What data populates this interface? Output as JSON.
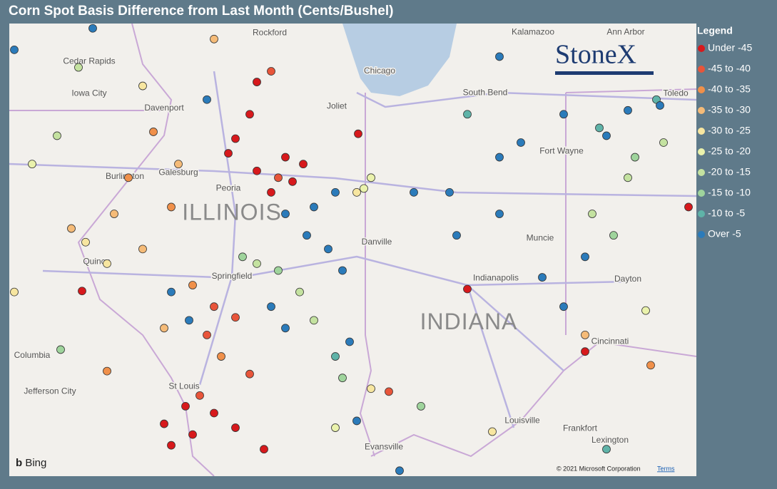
{
  "title": "Corn Spot Basis Difference from Last Month (Cents/Bushel)",
  "logo": "StoneX",
  "attribution": {
    "provider": "Bing",
    "copyright": "© 2021 Microsoft Corporation",
    "terms": "Terms"
  },
  "legend": {
    "title": "Legend",
    "items": [
      {
        "label": "Under -45",
        "color": "#d7191c"
      },
      {
        "label": "-45 to -40",
        "color": "#e8553a"
      },
      {
        "label": "-40 to -35",
        "color": "#f0904a"
      },
      {
        "label": "-35 to -30",
        "color": "#f5bb78"
      },
      {
        "label": "-30 to -25",
        "color": "#f7e6a0"
      },
      {
        "label": "-25 to -20",
        "color": "#eaf2ac"
      },
      {
        "label": "-20 to -15",
        "color": "#c4e2a0"
      },
      {
        "label": "-15 to -10",
        "color": "#9fd49c"
      },
      {
        "label": "-10 to -5",
        "color": "#5fb3a8"
      },
      {
        "label": "Over -5",
        "color": "#2b7bba"
      }
    ]
  },
  "map": {
    "states": [
      {
        "name": "ILLINOIS",
        "lon": -89.68,
        "lat": 40.42
      },
      {
        "name": "INDIANA",
        "lon": -86.36,
        "lat": 39.3
      }
    ],
    "cities": [
      {
        "name": "Rockford",
        "lon": -89.15,
        "lat": 42.27
      },
      {
        "name": "Chicago",
        "lon": -87.61,
        "lat": 41.88
      },
      {
        "name": "Joliet",
        "lon": -88.21,
        "lat": 41.52
      },
      {
        "name": "Peoria",
        "lon": -89.73,
        "lat": 40.68
      },
      {
        "name": "Springfield",
        "lon": -89.68,
        "lat": 39.78
      },
      {
        "name": "Indianapolis",
        "lon": -85.98,
        "lat": 39.76
      },
      {
        "name": "Dayton",
        "lon": -84.13,
        "lat": 39.75
      },
      {
        "name": "Cincinnati",
        "lon": -84.38,
        "lat": 39.11
      },
      {
        "name": "Louisville",
        "lon": -85.61,
        "lat": 38.3
      },
      {
        "name": "Evansville",
        "lon": -87.55,
        "lat": 38.03
      },
      {
        "name": "St Louis",
        "lon": -90.35,
        "lat": 38.65
      },
      {
        "name": "Columbia",
        "lon": -92.48,
        "lat": 38.97
      },
      {
        "name": "Jefferson City",
        "lon": -92.23,
        "lat": 38.6
      },
      {
        "name": "Kalamazoo",
        "lon": -85.46,
        "lat": 42.28
      },
      {
        "name": "Ann Arbor",
        "lon": -84.16,
        "lat": 42.28
      },
      {
        "name": "Toledo",
        "lon": -83.46,
        "lat": 41.65
      },
      {
        "name": "South Bend",
        "lon": -86.13,
        "lat": 41.66
      },
      {
        "name": "Fort Wayne",
        "lon": -85.06,
        "lat": 41.06
      },
      {
        "name": "Muncie",
        "lon": -85.36,
        "lat": 40.17
      },
      {
        "name": "Lexington",
        "lon": -84.38,
        "lat": 38.1
      },
      {
        "name": "Frankfort",
        "lon": -84.8,
        "lat": 38.22
      },
      {
        "name": "Danville",
        "lon": -87.65,
        "lat": 40.13
      },
      {
        "name": "Quincy",
        "lon": -91.58,
        "lat": 39.93
      },
      {
        "name": "Galesburg",
        "lon": -90.43,
        "lat": 40.84
      },
      {
        "name": "Burlington",
        "lon": -91.18,
        "lat": 40.8
      },
      {
        "name": "Davenport",
        "lon": -90.63,
        "lat": 41.5
      },
      {
        "name": "Iowa City",
        "lon": -91.68,
        "lat": 41.65
      },
      {
        "name": "Cedar Rapids",
        "lon": -91.68,
        "lat": 41.98
      }
    ],
    "points": [
      {
        "lon": -89.43,
        "lat": 41.44,
        "class": 0
      },
      {
        "lon": -89.63,
        "lat": 41.19,
        "class": 0
      },
      {
        "lon": -88.93,
        "lat": 41.0,
        "class": 0
      },
      {
        "lon": -88.68,
        "lat": 40.93,
        "class": 0
      },
      {
        "lon": -89.13,
        "lat": 40.64,
        "class": 0
      },
      {
        "lon": -88.83,
        "lat": 40.75,
        "class": 0
      },
      {
        "lon": -89.73,
        "lat": 41.04,
        "class": 0
      },
      {
        "lon": -89.33,
        "lat": 40.86,
        "class": 0
      },
      {
        "lon": -90.63,
        "lat": 38.27,
        "class": 0
      },
      {
        "lon": -90.23,
        "lat": 38.16,
        "class": 0
      },
      {
        "lon": -89.93,
        "lat": 38.38,
        "class": 0
      },
      {
        "lon": -90.33,
        "lat": 38.45,
        "class": 0
      },
      {
        "lon": -90.53,
        "lat": 38.05,
        "class": 0
      },
      {
        "lon": -89.63,
        "lat": 38.23,
        "class": 0
      },
      {
        "lon": -89.23,
        "lat": 38.01,
        "class": 0
      },
      {
        "lon": -91.78,
        "lat": 39.63,
        "class": 0
      },
      {
        "lon": -89.33,
        "lat": 41.77,
        "class": 0
      },
      {
        "lon": -87.91,
        "lat": 41.24,
        "class": 0
      },
      {
        "lon": -86.38,
        "lat": 39.65,
        "class": 0
      },
      {
        "lon": -84.73,
        "lat": 39.01,
        "class": 0
      },
      {
        "lon": -83.28,
        "lat": 40.49,
        "class": 0
      },
      {
        "lon": -89.13,
        "lat": 41.88,
        "class": 1
      },
      {
        "lon": -89.03,
        "lat": 40.79,
        "class": 1
      },
      {
        "lon": -90.03,
        "lat": 39.18,
        "class": 1
      },
      {
        "lon": -89.63,
        "lat": 39.36,
        "class": 1
      },
      {
        "lon": -87.48,
        "lat": 38.6,
        "class": 1
      },
      {
        "lon": -90.13,
        "lat": 38.56,
        "class": 1
      },
      {
        "lon": -89.43,
        "lat": 38.78,
        "class": 1
      },
      {
        "lon": -89.93,
        "lat": 39.47,
        "class": 1
      },
      {
        "lon": -90.53,
        "lat": 40.49,
        "class": 2
      },
      {
        "lon": -91.13,
        "lat": 40.79,
        "class": 2
      },
      {
        "lon": -90.23,
        "lat": 39.69,
        "class": 2
      },
      {
        "lon": -90.78,
        "lat": 41.26,
        "class": 2
      },
      {
        "lon": -89.83,
        "lat": 38.96,
        "class": 2
      },
      {
        "lon": -83.81,
        "lat": 38.87,
        "class": 2
      },
      {
        "lon": -91.43,
        "lat": 38.81,
        "class": 2
      },
      {
        "lon": -91.33,
        "lat": 40.42,
        "class": 3
      },
      {
        "lon": -91.93,
        "lat": 40.27,
        "class": 3
      },
      {
        "lon": -90.93,
        "lat": 40.06,
        "class": 3
      },
      {
        "lon": -90.43,
        "lat": 40.93,
        "class": 3
      },
      {
        "lon": -90.63,
        "lat": 39.25,
        "class": 3
      },
      {
        "lon": -89.93,
        "lat": 42.21,
        "class": 3
      },
      {
        "lon": -84.73,
        "lat": 39.18,
        "class": 3
      },
      {
        "lon": -91.73,
        "lat": 40.13,
        "class": 4
      },
      {
        "lon": -91.43,
        "lat": 39.91,
        "class": 4
      },
      {
        "lon": -90.93,
        "lat": 41.73,
        "class": 4
      },
      {
        "lon": -87.93,
        "lat": 40.64,
        "class": 4
      },
      {
        "lon": -86.03,
        "lat": 38.19,
        "class": 4
      },
      {
        "lon": -87.73,
        "lat": 38.63,
        "class": 4
      },
      {
        "lon": -92.73,
        "lat": 39.62,
        "class": 4
      },
      {
        "lon": -87.73,
        "lat": 40.79,
        "class": 5
      },
      {
        "lon": -88.23,
        "lat": 38.23,
        "class": 5
      },
      {
        "lon": -83.88,
        "lat": 39.43,
        "class": 5
      },
      {
        "lon": -92.48,
        "lat": 40.93,
        "class": 5
      },
      {
        "lon": -87.83,
        "lat": 40.68,
        "class": 5
      },
      {
        "lon": -91.83,
        "lat": 41.92,
        "class": 6
      },
      {
        "lon": -89.33,
        "lat": 39.91,
        "class": 6
      },
      {
        "lon": -88.73,
        "lat": 39.62,
        "class": 6
      },
      {
        "lon": -84.13,
        "lat": 40.79,
        "class": 6
      },
      {
        "lon": -83.63,
        "lat": 41.15,
        "class": 6
      },
      {
        "lon": -92.13,
        "lat": 41.22,
        "class": 6
      },
      {
        "lon": -88.53,
        "lat": 39.33,
        "class": 6
      },
      {
        "lon": -84.63,
        "lat": 40.42,
        "class": 6
      },
      {
        "lon": -89.53,
        "lat": 39.98,
        "class": 7
      },
      {
        "lon": -89.03,
        "lat": 39.84,
        "class": 7
      },
      {
        "lon": -92.08,
        "lat": 39.03,
        "class": 7
      },
      {
        "lon": -88.13,
        "lat": 38.74,
        "class": 7
      },
      {
        "lon": -84.03,
        "lat": 41.0,
        "class": 7
      },
      {
        "lon": -84.33,
        "lat": 40.2,
        "class": 7
      },
      {
        "lon": -87.03,
        "lat": 38.45,
        "class": 7
      },
      {
        "lon": -86.38,
        "lat": 41.44,
        "class": 8
      },
      {
        "lon": -83.73,
        "lat": 41.59,
        "class": 8
      },
      {
        "lon": -88.23,
        "lat": 38.96,
        "class": 8
      },
      {
        "lon": -84.53,
        "lat": 41.3,
        "class": 8
      },
      {
        "lon": -84.43,
        "lat": 38.01,
        "class": 8
      },
      {
        "lon": -92.73,
        "lat": 42.1,
        "class": 9
      },
      {
        "lon": -91.63,
        "lat": 42.32,
        "class": 9
      },
      {
        "lon": -90.03,
        "lat": 41.59,
        "class": 9
      },
      {
        "lon": -88.53,
        "lat": 40.49,
        "class": 9
      },
      {
        "lon": -88.23,
        "lat": 40.64,
        "class": 9
      },
      {
        "lon": -88.93,
        "lat": 40.42,
        "class": 9
      },
      {
        "lon": -88.33,
        "lat": 40.06,
        "class": 9
      },
      {
        "lon": -88.63,
        "lat": 40.2,
        "class": 9
      },
      {
        "lon": -88.13,
        "lat": 39.84,
        "class": 9
      },
      {
        "lon": -87.13,
        "lat": 40.64,
        "class": 9
      },
      {
        "lon": -86.63,
        "lat": 40.64,
        "class": 9
      },
      {
        "lon": -85.93,
        "lat": 41.0,
        "class": 9
      },
      {
        "lon": -85.63,
        "lat": 41.15,
        "class": 9
      },
      {
        "lon": -85.03,
        "lat": 41.44,
        "class": 9
      },
      {
        "lon": -84.43,
        "lat": 41.22,
        "class": 9
      },
      {
        "lon": -84.73,
        "lat": 39.98,
        "class": 9
      },
      {
        "lon": -85.33,
        "lat": 39.77,
        "class": 9
      },
      {
        "lon": -85.03,
        "lat": 39.47,
        "class": 9
      },
      {
        "lon": -85.93,
        "lat": 40.42,
        "class": 9
      },
      {
        "lon": -86.53,
        "lat": 40.2,
        "class": 9
      },
      {
        "lon": -89.13,
        "lat": 39.47,
        "class": 9
      },
      {
        "lon": -88.93,
        "lat": 39.25,
        "class": 9
      },
      {
        "lon": -88.03,
        "lat": 39.11,
        "class": 9
      },
      {
        "lon": -87.93,
        "lat": 38.3,
        "class": 9
      },
      {
        "lon": -87.33,
        "lat": 37.79,
        "class": 9
      },
      {
        "lon": -90.53,
        "lat": 39.62,
        "class": 9
      },
      {
        "lon": -90.28,
        "lat": 39.33,
        "class": 9
      },
      {
        "lon": -85.93,
        "lat": 42.03,
        "class": 9
      },
      {
        "lon": -84.13,
        "lat": 41.48,
        "class": 9
      },
      {
        "lon": -83.68,
        "lat": 41.53,
        "class": 9
      }
    ]
  }
}
